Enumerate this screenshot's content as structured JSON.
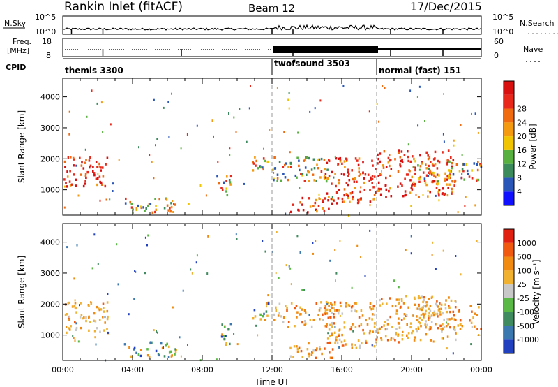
{
  "header": {
    "station": "Rankin Inlet (fitACF)",
    "beam": "Beam 12",
    "date": "17/Dec/2015"
  },
  "strip_labels": {
    "nsky": "N.Sky",
    "nsearch": "N.Search",
    "freq_line1": "Freq.",
    "freq_line2": "[MHz]",
    "nave": "Nave",
    "cpid": "CPID",
    "dots_short": "....",
    "dots_long": "........"
  },
  "strip_ticks": {
    "noise_top": "10^5",
    "noise_bottom": "10^0",
    "noise_top_right": "10^5",
    "noise_bottom_right": "10^0",
    "freq_top": "18",
    "freq_bottom": "8",
    "nave_top": "60",
    "nave_bottom": "0"
  },
  "cpid_segments": [
    {
      "label": "themis 3300",
      "start_hour": 0
    },
    {
      "label": "twofsound 3503",
      "start_hour": 12
    },
    {
      "label": "normal (fast) 151",
      "start_hour": 18
    }
  ],
  "chart_data": [
    {
      "type": "heatmap",
      "title": "Power [dB]",
      "xlabel": "",
      "ylabel": "Slant Range [km]",
      "xlim_hours": [
        0,
        24
      ],
      "ylim_km": [
        180,
        4600
      ],
      "yticks": [
        "1000",
        "2000",
        "3000",
        "4000"
      ],
      "colorbar_label": "Power [dB]",
      "colorbar_ticks": [
        "4",
        "8",
        "12",
        "16",
        "20",
        "24",
        "28"
      ],
      "colorbar_colors": [
        "#1010ff",
        "#2a56b8",
        "#3a8a5c",
        "#58b040",
        "#f0c400",
        "#f39a10",
        "#f06a10",
        "#e8281a",
        "#d81010"
      ],
      "echo_regions": [
        {
          "t0": 0.0,
          "t1": 2.6,
          "r0": 1100,
          "r1": 2100,
          "level": "high"
        },
        {
          "t0": 3.5,
          "t1": 6.5,
          "r0": 300,
          "r1": 800,
          "level": "mixed"
        },
        {
          "t0": 8.8,
          "t1": 9.6,
          "r0": 700,
          "r1": 1500,
          "level": "mixed"
        },
        {
          "t0": 10.8,
          "t1": 11.8,
          "r0": 1500,
          "r1": 2100,
          "level": "mixed"
        },
        {
          "t0": 12.0,
          "t1": 15.5,
          "r0": 1300,
          "r1": 2100,
          "level": "mixed"
        },
        {
          "t0": 13.0,
          "t1": 15.5,
          "r0": 300,
          "r1": 800,
          "level": "high"
        },
        {
          "t0": 15.0,
          "t1": 18.0,
          "r0": 600,
          "r1": 2100,
          "level": "high"
        },
        {
          "t0": 18.0,
          "t1": 22.5,
          "r0": 800,
          "r1": 2300,
          "level": "high"
        },
        {
          "t0": 20.0,
          "t1": 24.0,
          "r0": 1200,
          "r1": 2000,
          "level": "mixed"
        }
      ]
    },
    {
      "type": "heatmap",
      "title": "Velocity [m s-1]",
      "xlabel": "Time UT",
      "ylabel": "Slant Range [km]",
      "xlim_hours": [
        0,
        24
      ],
      "ylim_km": [
        180,
        4600
      ],
      "xticks": [
        "00:00",
        "04:00",
        "08:00",
        "12:00",
        "16:00",
        "20:00",
        "00:00"
      ],
      "yticks": [
        "1000",
        "2000",
        "3000",
        "4000"
      ],
      "colorbar_label": "Velocity [m s⁻¹]",
      "colorbar_ticks": [
        "1000",
        "500",
        "100",
        "25",
        "-25",
        "-100",
        "-500",
        "-1000"
      ],
      "colorbar_colors": [
        "#2040c0",
        "#3b78b0",
        "#3f8a5e",
        "#5ab846",
        "#c8c8c8",
        "#f0b030",
        "#f08a10",
        "#f05a10",
        "#e02010"
      ],
      "echo_regions": [
        {
          "t0": 0.0,
          "t1": 2.6,
          "r0": 1100,
          "r1": 2100,
          "level": "orange"
        },
        {
          "t0": 3.5,
          "t1": 6.5,
          "r0": 300,
          "r1": 800,
          "level": "mixed"
        },
        {
          "t0": 8.8,
          "t1": 9.6,
          "r0": 700,
          "r1": 1500,
          "level": "mixed"
        },
        {
          "t0": 10.8,
          "t1": 11.8,
          "r0": 1500,
          "r1": 2100,
          "level": "mixed"
        },
        {
          "t0": 12.0,
          "t1": 15.5,
          "r0": 1300,
          "r1": 2100,
          "level": "orange"
        },
        {
          "t0": 13.0,
          "t1": 15.5,
          "r0": 300,
          "r1": 800,
          "level": "orange"
        },
        {
          "t0": 15.0,
          "t1": 18.0,
          "r0": 600,
          "r1": 2100,
          "level": "orange"
        },
        {
          "t0": 18.0,
          "t1": 22.5,
          "r0": 800,
          "r1": 2300,
          "level": "orange"
        },
        {
          "t0": 20.0,
          "t1": 24.0,
          "r0": 1200,
          "r1": 2000,
          "level": "orange"
        }
      ]
    }
  ]
}
